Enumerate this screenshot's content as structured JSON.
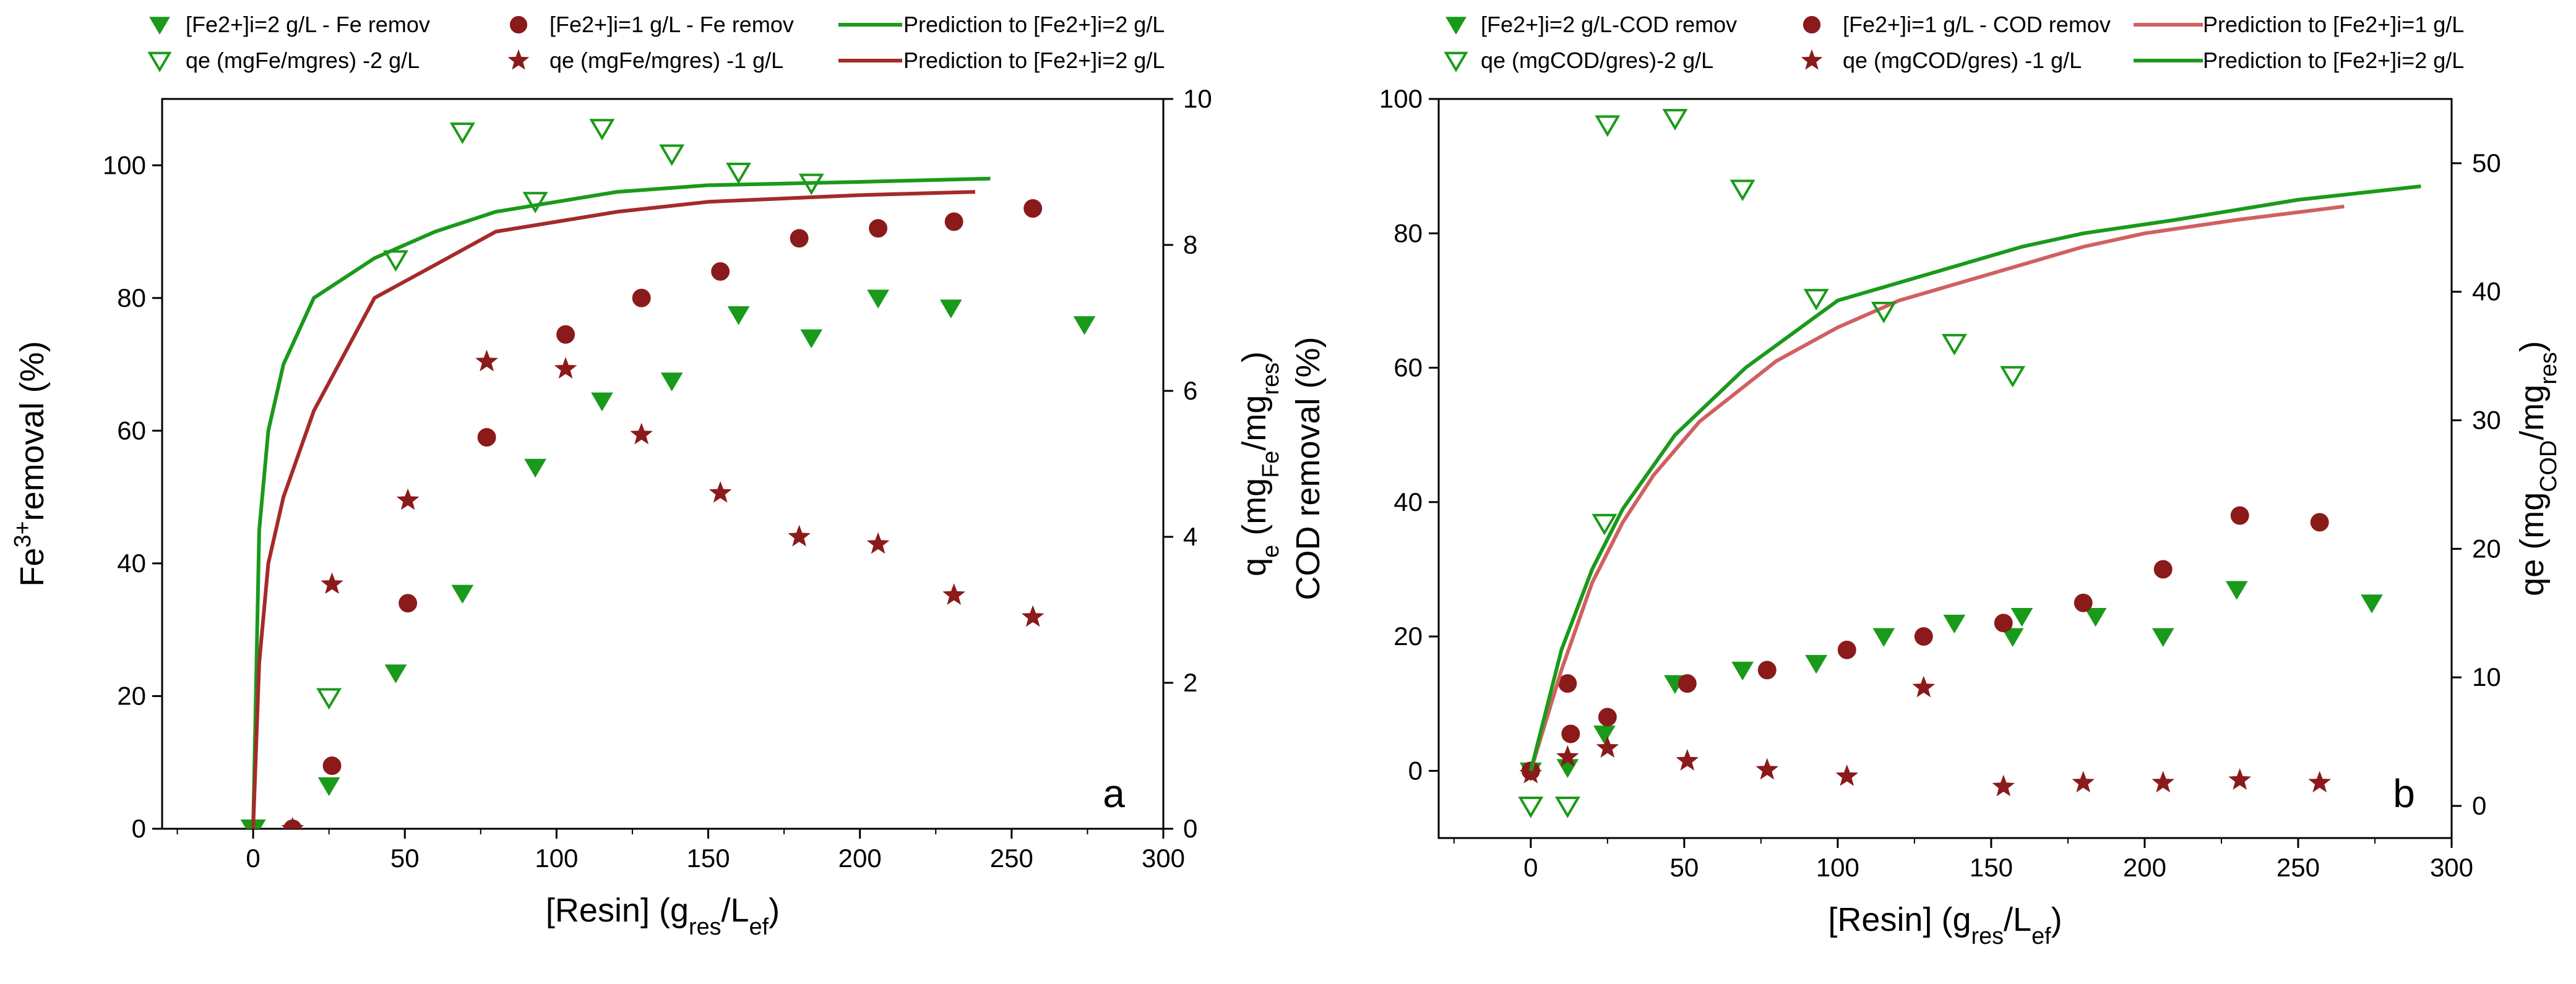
{
  "chart_data": [
    {
      "type": "scatter",
      "panel_label": "a",
      "xlabel": "[Resin] (g_res/L_ef)",
      "ylabel_left": "Fe3+ removal (%)",
      "ylabel_right": "q_e (mg_Fe/mg_res)",
      "xlim": [
        -30,
        300
      ],
      "ylim_left": [
        0,
        110
      ],
      "ylim_right": [
        0,
        10
      ],
      "xticks": [
        0,
        50,
        100,
        150,
        200,
        250,
        300
      ],
      "yticks_left": [
        0,
        20,
        40,
        60,
        80,
        100
      ],
      "yticks_right": [
        0,
        2,
        4,
        6,
        8,
        10
      ],
      "grid": false,
      "legend_position": "top",
      "series": [
        {
          "name": "[Fe2+]i=2 g/L - Fe remov",
          "marker": "triangle-down-filled",
          "color": "#1a9a1a",
          "axis": "left",
          "x": [
            0,
            25,
            47,
            69,
            93,
            115,
            138,
            160,
            184,
            206,
            230,
            274
          ],
          "y": [
            0,
            6.5,
            23.5,
            35.5,
            54.5,
            64.5,
            67.5,
            77.5,
            74,
            80,
            78.5,
            76
          ]
        },
        {
          "name": "[Fe2+]i=1 g/L - Fe remov",
          "marker": "circle",
          "color": "#8b1a1a",
          "axis": "left",
          "x": [
            13,
            26,
            51,
            77,
            103,
            128,
            154,
            180,
            206,
            231,
            257
          ],
          "y": [
            0,
            9.5,
            34,
            59,
            74.5,
            80,
            84,
            89,
            90.5,
            91.5,
            93.5
          ]
        },
        {
          "name": "Prediction to [Fe2+]i=2 g/L",
          "line": true,
          "color": "#1a9a1a",
          "axis": "left",
          "x": [
            0,
            2,
            5,
            10,
            20,
            40,
            60,
            80,
            100,
            120,
            150,
            200,
            243
          ],
          "y": [
            0,
            45,
            60,
            70,
            80,
            86,
            90,
            93,
            94.5,
            96,
            97,
            97.5,
            98
          ]
        },
        {
          "name": "qe (mgFe/mgres) -2 g/L",
          "marker": "triangle-down-open",
          "color": "#1a9a1a",
          "axis": "right",
          "x": [
            0,
            25,
            47,
            69,
            93,
            115,
            138,
            160,
            184
          ],
          "y": [
            0,
            1.8,
            7.8,
            9.55,
            8.6,
            9.6,
            9.25,
            9.0,
            8.85
          ]
        },
        {
          "name": "qe (mgFe/mgres) -1 g/L",
          "marker": "star",
          "color": "#8b1a1a",
          "axis": "right",
          "x": [
            13,
            26,
            51,
            77,
            103,
            128,
            154,
            180,
            206,
            231,
            257
          ],
          "y": [
            0,
            3.35,
            4.5,
            6.4,
            6.3,
            5.4,
            4.6,
            4.0,
            3.9,
            3.2,
            2.9
          ]
        },
        {
          "name": "Prediction to [Fe2+]i=2 g/L",
          "line": true,
          "color": "#a52a2a",
          "axis": "left",
          "x": [
            0,
            2,
            5,
            10,
            20,
            40,
            60,
            80,
            100,
            120,
            150,
            200,
            238
          ],
          "y": [
            0,
            25,
            40,
            50,
            63,
            80,
            85,
            90,
            91.5,
            93,
            94.5,
            95.5,
            96
          ]
        }
      ]
    },
    {
      "type": "scatter",
      "panel_label": "b",
      "xlabel": "[Resin] (g_res/L_ef)",
      "ylabel_left": "COD removal (%)",
      "ylabel_right": "qe (mg_COD/mg_res)",
      "xlim": [
        -30,
        300
      ],
      "ylim_left": [
        -10,
        100
      ],
      "ylim_right": [
        -2.5,
        55
      ],
      "xticks": [
        0,
        50,
        100,
        150,
        200,
        250,
        300
      ],
      "yticks_left": [
        0,
        20,
        40,
        60,
        80,
        100
      ],
      "yticks_right": [
        0,
        10,
        20,
        30,
        40,
        50
      ],
      "grid": false,
      "legend_position": "top",
      "series": [
        {
          "name": "[Fe2+]i=2 g/L-COD remov",
          "marker": "triangle-down-filled",
          "color": "#1a9a1a",
          "axis": "left",
          "x": [
            0,
            12,
            24,
            47,
            69,
            93,
            115,
            138,
            157,
            160,
            184,
            206,
            230,
            274
          ],
          "y": [
            0,
            0.5,
            5.5,
            13,
            15,
            16,
            20,
            22,
            20,
            23,
            23,
            20,
            27,
            25
          ]
        },
        {
          "name": "[Fe2+]i=1 g/L - COD remov",
          "marker": "circle",
          "color": "#8b1a1a",
          "axis": "left",
          "x": [
            0,
            12,
            13,
            25,
            51,
            77,
            103,
            128,
            154,
            180,
            206,
            231,
            257
          ],
          "y": [
            0,
            13,
            5.5,
            8,
            13,
            15,
            18,
            20,
            22,
            25,
            30,
            38,
            37
          ]
        },
        {
          "name": "Prediction to [Fe2+]i=1 g/L",
          "line": true,
          "color": "#d06060",
          "axis": "left",
          "x": [
            0,
            10,
            20,
            30,
            40,
            55,
            80,
            100,
            120,
            150,
            180,
            200,
            230,
            265
          ],
          "y": [
            0,
            15,
            28,
            37,
            44,
            52,
            61,
            66,
            70,
            74,
            78,
            80,
            82,
            84
          ]
        },
        {
          "name": "qe (mgCOD/gres)-2 g/L",
          "marker": "triangle-down-open",
          "color": "#1a9a1a",
          "axis": "right",
          "x": [
            0,
            12,
            24,
            25,
            47,
            69,
            93,
            115,
            138,
            157
          ],
          "y": [
            0,
            0,
            22,
            53,
            53.5,
            48,
            39.5,
            38.5,
            36,
            33.5
          ]
        },
        {
          "name": "qe (mgCOD/gres) -1 g/L",
          "marker": "star",
          "color": "#8b1a1a",
          "axis": "right",
          "x": [
            0,
            12,
            25,
            51,
            77,
            103,
            128,
            154,
            180,
            206,
            231,
            257
          ],
          "y": [
            2.5,
            3.8,
            4.5,
            3.5,
            2.8,
            2.3,
            9.2,
            1.5,
            1.8,
            1.8,
            2.0,
            1.8
          ]
        },
        {
          "name": "Prediction to [Fe2+]i=2 g/L",
          "line": true,
          "color": "#1a9a1a",
          "axis": "left",
          "x": [
            0,
            10,
            20,
            30,
            47,
            70,
            100,
            130,
            160,
            180,
            210,
            250,
            290
          ],
          "y": [
            0,
            18,
            30,
            39,
            50,
            60,
            70,
            74,
            78,
            80,
            82,
            85,
            87
          ]
        }
      ]
    }
  ]
}
